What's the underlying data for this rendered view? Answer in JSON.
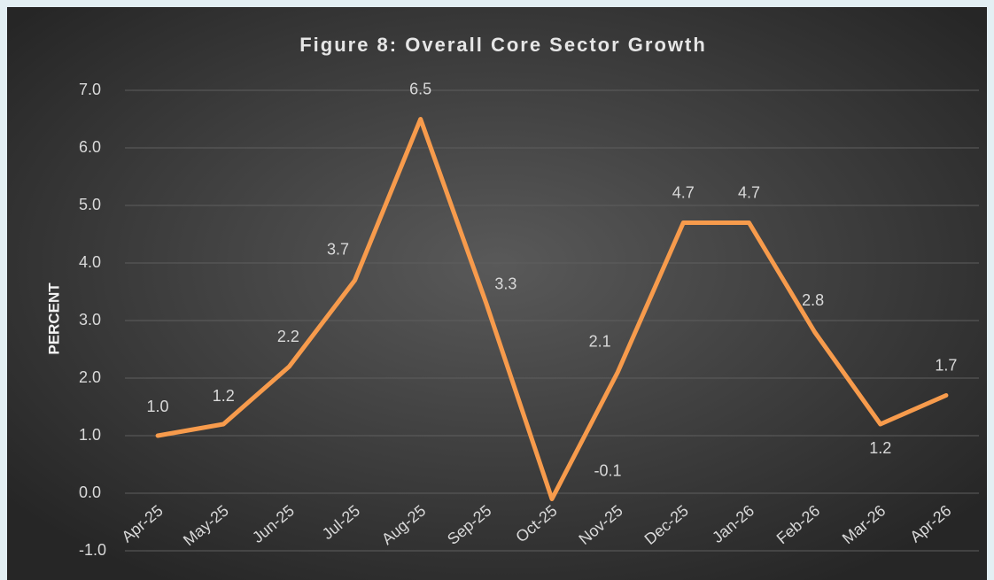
{
  "chart_data": {
    "type": "line",
    "title": "Figure  8: Overall Core Sector Growth",
    "y_label": "PERCENT",
    "categories": [
      "Apr-25",
      "May-25",
      "Jun-25",
      "Jul-25",
      "Aug-25",
      "Sep-25",
      "Oct-25",
      "Nov-25",
      "Dec-25",
      "Jan-26",
      "Feb-26",
      "Mar-26",
      "Apr-26"
    ],
    "series": [
      {
        "name": "Overall Core Sector Growth",
        "color": "#f79b4c",
        "values": [
          1.0,
          1.2,
          2.2,
          3.7,
          6.5,
          3.3,
          -0.1,
          2.1,
          4.7,
          4.7,
          2.8,
          1.2,
          1.7
        ],
        "value_labels": [
          "1.0",
          "1.2",
          "2.2",
          "3.7",
          "6.5",
          "3.3",
          "-0.1",
          "2.1",
          "4.7",
          "4.7",
          "2.8",
          "1.2",
          "1.7"
        ]
      }
    ],
    "ylim": [
      -1,
      7
    ],
    "yticks": [
      {
        "value": -1,
        "label": "-1.0"
      },
      {
        "value": 0,
        "label": "0.0"
      },
      {
        "value": 1,
        "label": "1.0"
      },
      {
        "value": 2,
        "label": "2.0"
      },
      {
        "value": 3,
        "label": "3.0"
      },
      {
        "value": 4,
        "label": "4.0"
      },
      {
        "value": 5,
        "label": "5.0"
      },
      {
        "value": 6,
        "label": "6.0"
      },
      {
        "value": 7,
        "label": "7.0"
      }
    ],
    "grid": true
  }
}
